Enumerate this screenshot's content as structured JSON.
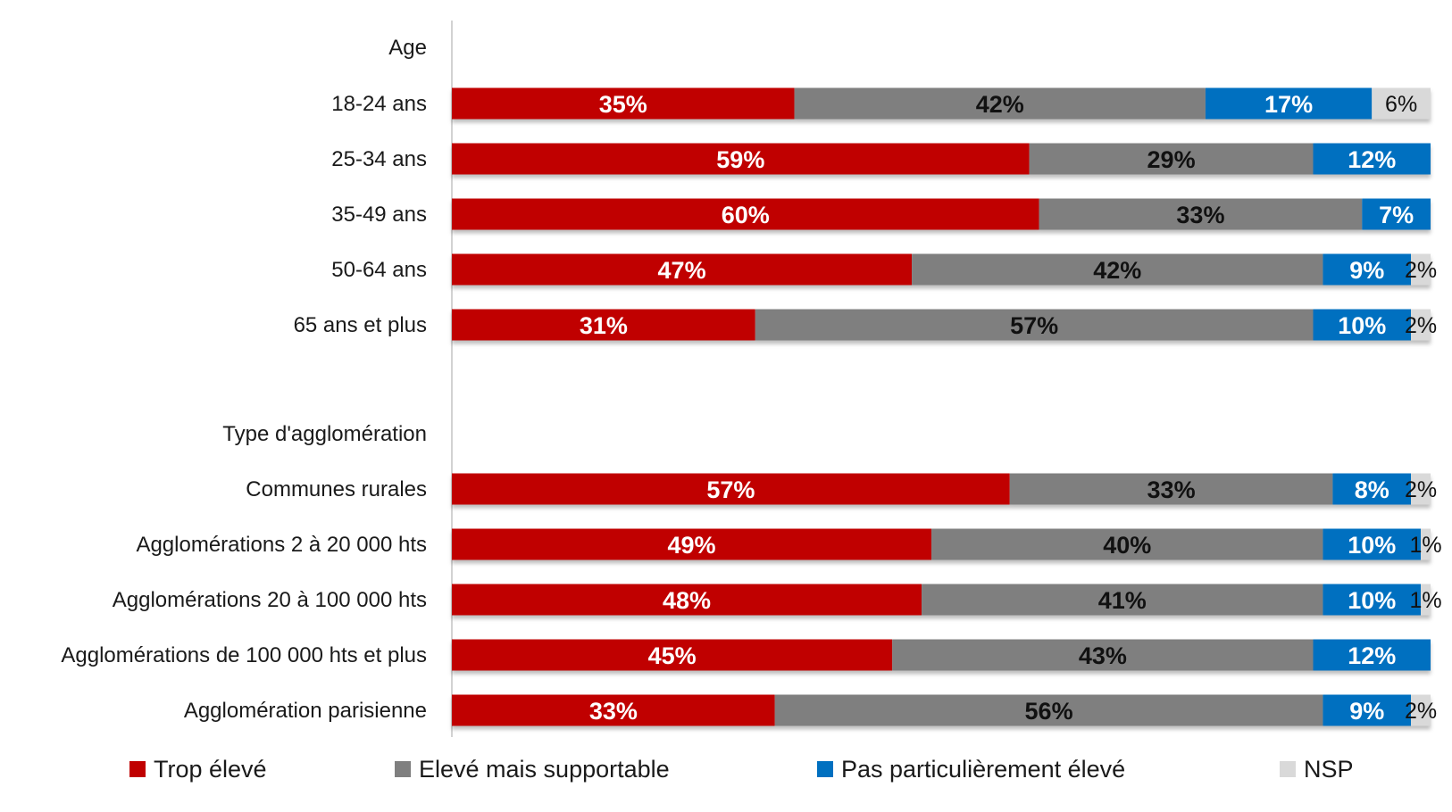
{
  "chart_data": {
    "type": "bar",
    "orientation": "horizontal",
    "stacked": true,
    "xlim": [
      0,
      100
    ],
    "grid": false,
    "legend_position": "bottom",
    "groups": [
      {
        "heading": "Age",
        "categories": [
          "18-24 ans",
          "25-34 ans",
          "35-49 ans",
          "50-64 ans",
          "65 ans et plus"
        ]
      },
      {
        "heading": "Type d'agglomération",
        "categories": [
          "Communes rurales",
          "Agglomérations 2 à 20 000 hts",
          "Agglomérations 20 à 100 000 hts",
          "Agglomérations de 100 000 hts et plus",
          "Agglomération parisienne"
        ]
      }
    ],
    "series": [
      {
        "name": "Trop élevé",
        "color": "#C00000",
        "label_color": "#ffffff",
        "values": [
          [
            35,
            59,
            60,
            47,
            31
          ],
          [
            57,
            49,
            48,
            45,
            33
          ]
        ]
      },
      {
        "name": "Elevé mais supportable",
        "color": "#7F7F7F",
        "label_color": "#111111",
        "values": [
          [
            42,
            29,
            33,
            42,
            57
          ],
          [
            33,
            40,
            41,
            43,
            56
          ]
        ]
      },
      {
        "name": "Pas particulièrement élevé",
        "color": "#0070C0",
        "label_color": "#ffffff",
        "values": [
          [
            17,
            12,
            7,
            9,
            10
          ],
          [
            8,
            10,
            10,
            12,
            9
          ]
        ]
      },
      {
        "name": "NSP",
        "color": "#D9D9D9",
        "label_color": "#111111",
        "values": [
          [
            6,
            0,
            0,
            2,
            2
          ],
          [
            2,
            1,
            1,
            0,
            2
          ]
        ]
      }
    ]
  }
}
